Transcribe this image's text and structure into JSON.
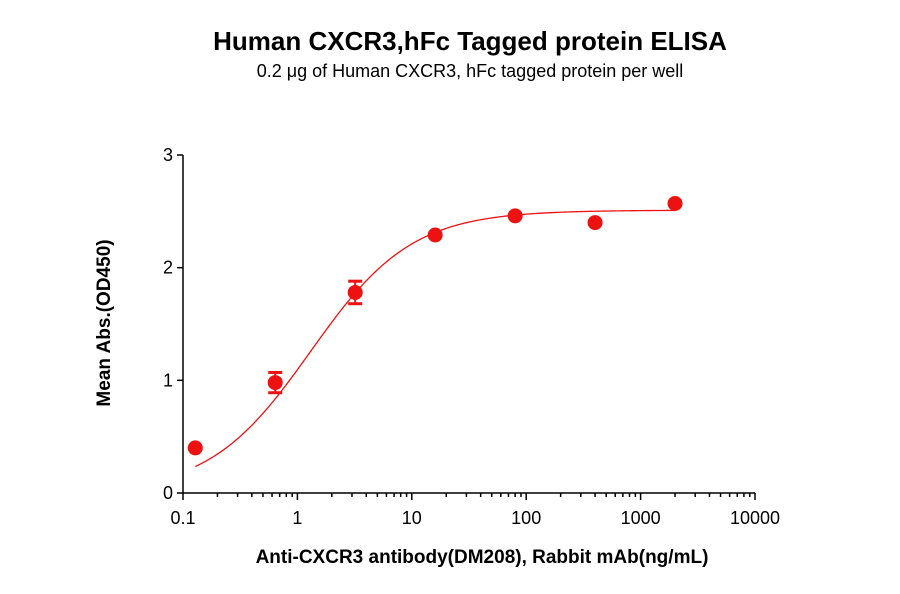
{
  "chart_data": {
    "type": "scatter",
    "title": "Human CXCR3,hFc Tagged protein ELISA",
    "subtitle": "0.2 μg of Human CXCR3, hFc tagged protein per well",
    "xlabel": "Anti-CXCR3 antibody(DM208), Rabbit mAb(ng/mL)",
    "ylabel": "Mean Abs.(OD450)",
    "xscale": "log",
    "xlim": [
      0.1,
      10000
    ],
    "ylim": [
      0,
      3
    ],
    "xticks": [
      0.1,
      1,
      10,
      100,
      1000,
      10000
    ],
    "xtick_labels": [
      "0.1",
      "1",
      "10",
      "100",
      "1000",
      "10000"
    ],
    "yticks": [
      0,
      1,
      2,
      3
    ],
    "ytick_labels": [
      "0",
      "1",
      "2",
      "3"
    ],
    "grid": false,
    "marker_color": "#ee1111",
    "points": [
      {
        "x": 0.128,
        "y": 0.4,
        "err": 0
      },
      {
        "x": 0.64,
        "y": 0.98,
        "err": 0.09
      },
      {
        "x": 3.2,
        "y": 1.78,
        "err": 0.1
      },
      {
        "x": 16,
        "y": 2.29,
        "err": 0
      },
      {
        "x": 80,
        "y": 2.46,
        "err": 0
      },
      {
        "x": 400,
        "y": 2.4,
        "err": 0
      },
      {
        "x": 2000,
        "y": 2.57,
        "err": 0
      }
    ],
    "fit_curve": {
      "model": "4PL",
      "bottom": 0.0,
      "top": 2.51,
      "ec50": 1.3,
      "hill": 0.98
    }
  }
}
